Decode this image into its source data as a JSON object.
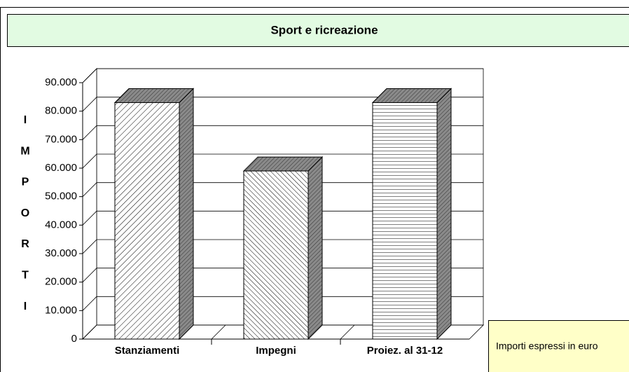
{
  "chart_data": {
    "type": "bar3d",
    "title": "Sport e ricreazione",
    "y_label": "IMPORTI",
    "categories": [
      "Stanziamenti",
      "Impegni",
      "Proiez. al 31-12"
    ],
    "values": [
      83000,
      59000,
      83000
    ],
    "ylim": [
      0,
      90000
    ],
    "yticks": [
      0,
      {
        "value": 10000,
        "label": "10.000"
      },
      {
        "value": 20000,
        "label": "20.000"
      },
      {
        "value": 30000,
        "label": "30.000"
      },
      {
        "value": 40000,
        "label": "40.000"
      },
      {
        "value": 50000,
        "label": "50.000"
      },
      {
        "value": 60000,
        "label": "60.000"
      },
      {
        "value": 70000,
        "label": "70.000"
      },
      {
        "value": 80000,
        "label": "80.000"
      },
      {
        "value": 90000,
        "label": "90.000"
      }
    ],
    "grid": true,
    "note": "Importi espressi in euro"
  }
}
